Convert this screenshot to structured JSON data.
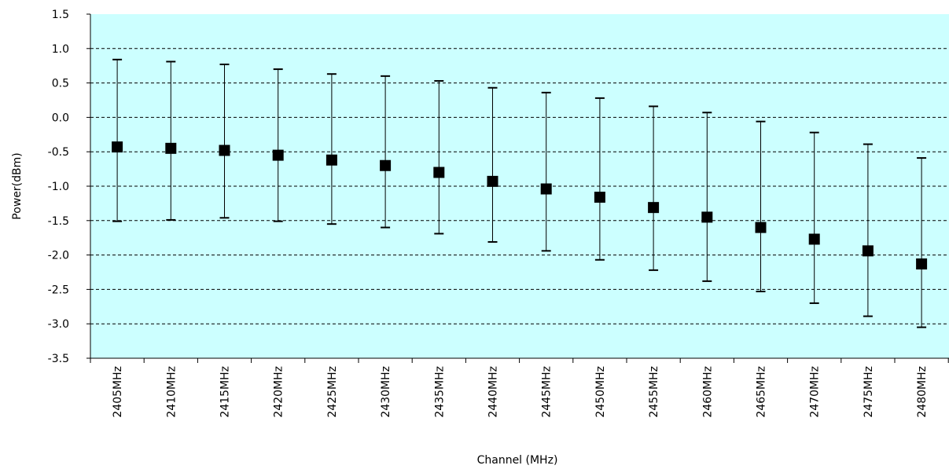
{
  "chart_data": {
    "type": "scatter",
    "title": "",
    "xlabel": "Channel (MHz)",
    "ylabel": "Power(dBm)",
    "ylim": [
      -3.5,
      1.5
    ],
    "yticks": [
      1.5,
      1.0,
      0.5,
      0.0,
      -0.5,
      -1.0,
      -1.5,
      -2.0,
      -2.5,
      -3.0,
      -3.5
    ],
    "ytick_labels": [
      "1.5",
      "1.0",
      "0.5",
      "0.0",
      "-0.5",
      "-1.0",
      "-1.5",
      "-2.0",
      "-2.5",
      "-3.0",
      "-3.5"
    ],
    "categories": [
      "2405MHz",
      "2410MHz",
      "2415MHz",
      "2420MHz",
      "2425MHz",
      "2430MHz",
      "2435MHz",
      "2440MHz",
      "2445MHz",
      "2450MHz",
      "2455MHz",
      "2460MHz",
      "2465MHz",
      "2470MHz",
      "2475MHz",
      "2480MHz"
    ],
    "values": [
      -0.43,
      -0.45,
      -0.48,
      -0.55,
      -0.62,
      -0.7,
      -0.8,
      -0.93,
      -1.04,
      -1.16,
      -1.31,
      -1.45,
      -1.6,
      -1.77,
      -1.94,
      -2.13
    ],
    "error_high": [
      0.84,
      0.81,
      0.77,
      0.7,
      0.63,
      0.6,
      0.53,
      0.43,
      0.36,
      0.28,
      0.16,
      0.07,
      -0.06,
      -0.22,
      -0.39,
      -0.59
    ],
    "error_low": [
      -1.51,
      -1.49,
      -1.46,
      -1.51,
      -1.55,
      -1.6,
      -1.69,
      -1.81,
      -1.94,
      -2.07,
      -2.22,
      -2.38,
      -2.53,
      -2.7,
      -2.89,
      -3.05
    ],
    "grid": true,
    "colors": {
      "plot_background": "#ccffff",
      "marker": "#000000",
      "gridline": "#000000"
    }
  }
}
